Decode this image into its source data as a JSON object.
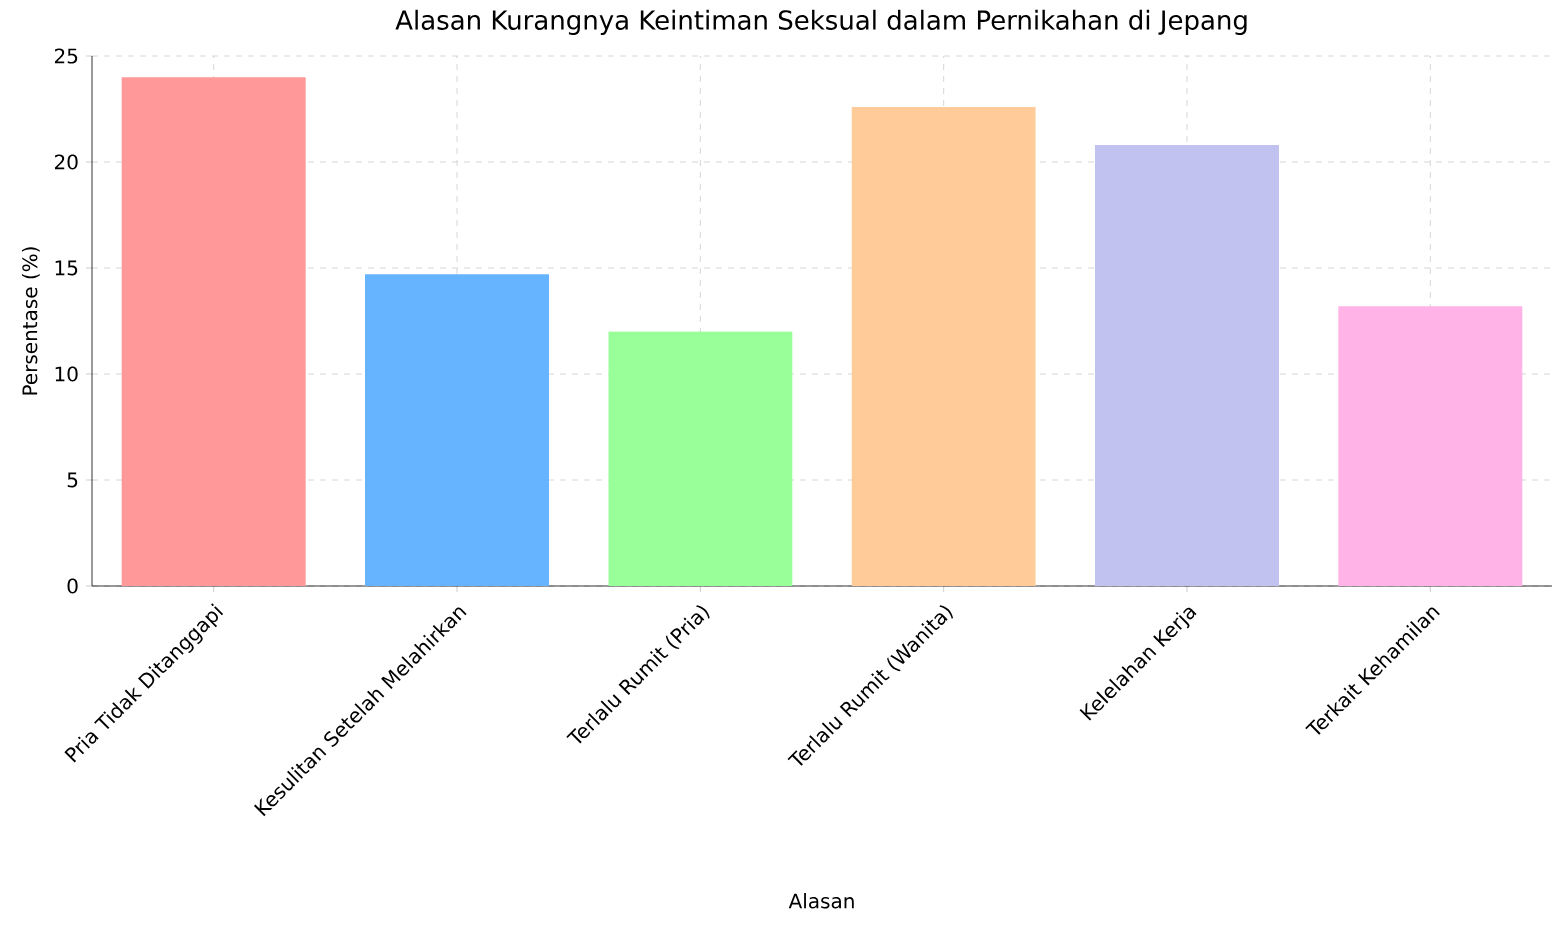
{
  "chart_data": {
    "type": "bar",
    "title": "Alasan Kurangnya Keintiman Seksual dalam Pernikahan di Jepang",
    "xlabel": "Alasan",
    "ylabel": "Persentase (%)",
    "categories": [
      "Pria Tidak Ditanggapi",
      "Kesulitan Setelah Melahirkan",
      "Terlalu Rumit (Pria)",
      "Terlalu Rumit (Wanita)",
      "Kelelahan Kerja",
      "Terkait Kehamilan"
    ],
    "values": [
      24,
      14.7,
      12.0,
      22.6,
      20.8,
      13.2
    ],
    "colors": [
      "#ff9999",
      "#66b3ff",
      "#99ff99",
      "#ffcc99",
      "#c2c2f0",
      "#ffb3e6"
    ],
    "ylim": [
      0,
      25
    ],
    "yticks": [
      0,
      5,
      10,
      15,
      20,
      25
    ],
    "grid": true
  }
}
